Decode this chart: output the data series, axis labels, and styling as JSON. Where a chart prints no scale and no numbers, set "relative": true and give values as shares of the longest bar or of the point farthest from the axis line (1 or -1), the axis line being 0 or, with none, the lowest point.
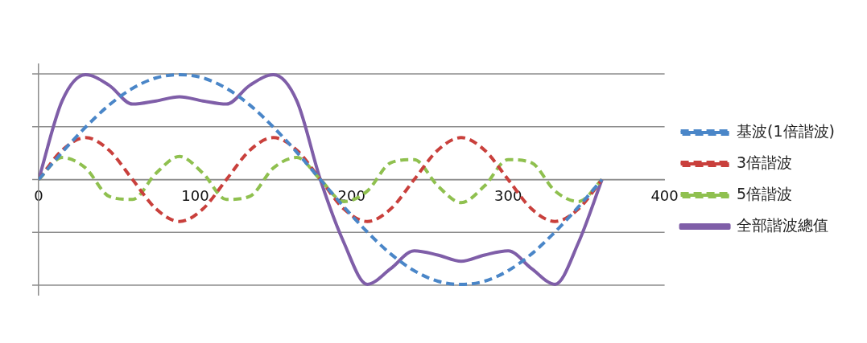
{
  "chart_data": {
    "type": "line",
    "relative": true,
    "x": [
      0,
      15,
      30,
      45,
      60,
      75,
      90,
      105,
      120,
      135,
      150,
      165,
      180,
      195,
      210,
      225,
      240,
      255,
      270,
      285,
      300,
      315,
      330,
      345,
      360
    ],
    "xlim": [
      0,
      400
    ],
    "xticks": [
      0,
      100,
      200,
      300,
      400
    ],
    "grid": "y",
    "legend": "right",
    "line_style": "dashed",
    "marker": "none",
    "series": [
      {
        "name": "基波(1倍諧波)",
        "color": "#4a86c8",
        "values": [
          0,
          0.26,
          0.5,
          0.71,
          0.87,
          0.97,
          1,
          0.97,
          0.87,
          0.71,
          0.5,
          0.26,
          0,
          -0.26,
          -0.5,
          -0.71,
          -0.87,
          -0.97,
          -1,
          -0.97,
          -0.87,
          -0.71,
          -0.5,
          -0.26,
          0
        ]
      },
      {
        "name": "3倍諧波",
        "color": "#c9403c",
        "values": [
          0,
          0.28,
          0.4,
          0.28,
          0,
          -0.28,
          -0.4,
          -0.28,
          0,
          0.28,
          0.4,
          0.28,
          0,
          -0.28,
          -0.4,
          -0.28,
          0,
          0.28,
          0.4,
          0.28,
          0,
          -0.28,
          -0.4,
          -0.28,
          0
        ]
      },
      {
        "name": "5倍諧波",
        "color": "#8fc04f",
        "values": [
          0,
          0.21,
          0.11,
          -0.16,
          -0.19,
          0.06,
          0.22,
          0.06,
          -0.19,
          -0.16,
          0.11,
          0.21,
          0,
          -0.21,
          -0.11,
          0.16,
          0.19,
          -0.06,
          -0.22,
          -0.06,
          0.19,
          0.16,
          -0.11,
          -0.21,
          0
        ]
      },
      {
        "name": "全部諧波總值",
        "color": "#7f5ea8",
        "line_style": "solid",
        "values": [
          0,
          0.75,
          1,
          0.9,
          0.72,
          0.75,
          0.79,
          0.75,
          0.72,
          0.9,
          1,
          0.75,
          0,
          -0.6,
          -1,
          -0.85,
          -0.68,
          -0.72,
          -0.78,
          -0.72,
          -0.68,
          -0.85,
          -1,
          -0.6,
          0
        ]
      }
    ]
  }
}
